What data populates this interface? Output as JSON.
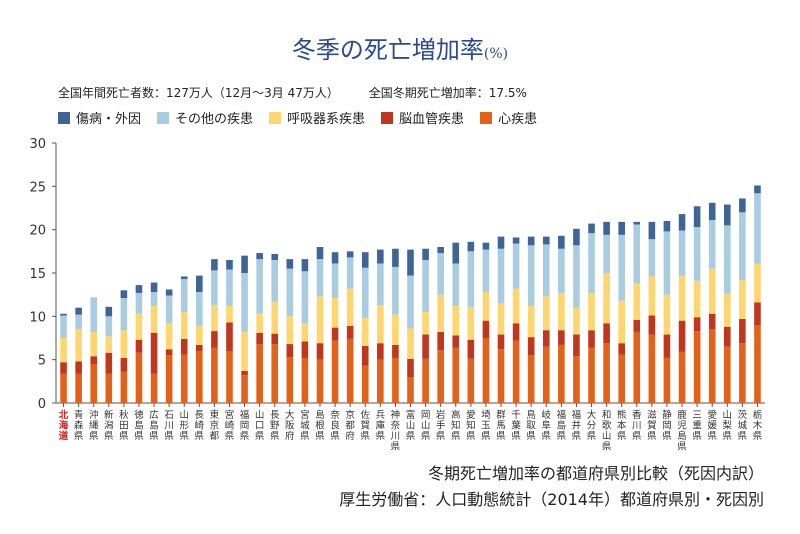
{
  "header": {
    "title_main": "冬季の死亡増加率",
    "title_unit": "(%)",
    "stat_total": "全国年間死亡者数：127万人（12月～3月 47万人）",
    "stat_rate": "全国冬期死亡増加率：17.5%"
  },
  "footer": {
    "line1": "冬期死亡増加率の都道府県別比較（死因内訳）",
    "line2": "厚生労働省：人口動態統計（2014年）都道府県別・死因別"
  },
  "colors": {
    "injury": "#3f6597",
    "other": "#a9cce0",
    "respiratory": "#fdd66f",
    "cerebro": "#c0361e",
    "heart": "#e2621a",
    "highlight_label": "#d42020"
  },
  "chart_data": {
    "type": "bar",
    "stacked": true,
    "ylim": [
      0,
      30
    ],
    "yticks": [
      0,
      5,
      10,
      15,
      20,
      25,
      30
    ],
    "grid": false,
    "legend_position": "top-left",
    "highlight_category": "北海道",
    "categories": [
      "北海道",
      "青森県",
      "沖縄県",
      "新潟県",
      "秋田県",
      "徳島県",
      "広島県",
      "石川県",
      "山形県",
      "長崎県",
      "東京都",
      "宮崎県",
      "福岡県",
      "山口県",
      "長野県",
      "大阪府",
      "宮城県",
      "島根県",
      "奈良県",
      "京都府",
      "佐賀県",
      "兵庫県",
      "神奈川県",
      "富山県",
      "岡山県",
      "岩手県",
      "高知県",
      "愛知県",
      "埼玉県",
      "群馬県",
      "千葉県",
      "鳥取県",
      "岐阜県",
      "福島県",
      "福井県",
      "大分県",
      "和歌山県",
      "熊本県",
      "香川県",
      "滋賀県",
      "静岡県",
      "鹿児島県",
      "三重県",
      "愛媛県",
      "山梨県",
      "茨城県",
      "栃木県"
    ],
    "series": [
      {
        "name": "心疾患",
        "key": "heart",
        "values": [
          3.4,
          3.4,
          4.5,
          3.4,
          3.6,
          5.8,
          3.4,
          5.5,
          5.6,
          6.0,
          6.4,
          6.0,
          3.2,
          6.8,
          6.8,
          5.3,
          5.2,
          5.0,
          7.2,
          7.4,
          4.3,
          5.0,
          5.2,
          3.0,
          5.1,
          6.1,
          6.4,
          5.1,
          7.5,
          6.2,
          7.2,
          5.5,
          6.5,
          6.7,
          5.4,
          6.4,
          6.9,
          5.6,
          8.2,
          7.9,
          5.2,
          5.9,
          8.3,
          8.5,
          6.5,
          6.9,
          9.0
        ]
      },
      {
        "name": "脳血管疾患",
        "key": "cerebro",
        "values": [
          1.3,
          1.4,
          0.9,
          2.4,
          1.6,
          1.5,
          4.7,
          0.7,
          1.8,
          0.7,
          1.9,
          3.3,
          0.5,
          1.3,
          1.2,
          1.5,
          1.9,
          1.9,
          1.5,
          1.5,
          2.3,
          1.9,
          1.5,
          2.1,
          2.8,
          2.1,
          1.4,
          2.2,
          2.0,
          1.7,
          2.0,
          2.1,
          1.9,
          1.7,
          2.5,
          2.0,
          2.3,
          1.3,
          1.4,
          2.2,
          2.7,
          3.6,
          1.6,
          1.8,
          2.3,
          2.8,
          2.6
        ]
      },
      {
        "name": "呼吸器系疾患",
        "key": "respiratory",
        "values": [
          2.8,
          3.7,
          2.8,
          1.9,
          3.2,
          3.0,
          3.1,
          3.0,
          3.1,
          2.2,
          3.0,
          1.9,
          4.5,
          2.2,
          3.7,
          3.2,
          2.1,
          5.4,
          3.4,
          4.3,
          3.2,
          4.4,
          3.5,
          3.5,
          2.6,
          4.3,
          3.4,
          3.8,
          3.3,
          3.6,
          4.0,
          3.6,
          3.9,
          4.3,
          3.1,
          4.3,
          5.8,
          4.9,
          4.2,
          4.5,
          4.6,
          5.2,
          4.2,
          5.2,
          3.8,
          4.5,
          4.5
        ]
      },
      {
        "name": "その他の疾患",
        "key": "other",
        "values": [
          2.6,
          1.7,
          4.0,
          2.3,
          3.7,
          2.4,
          1.6,
          3.2,
          3.8,
          3.9,
          4.0,
          4.2,
          6.8,
          6.3,
          4.8,
          5.5,
          6.0,
          4.3,
          4.0,
          3.6,
          5.8,
          4.8,
          5.5,
          6.1,
          6.0,
          4.8,
          4.9,
          6.4,
          4.9,
          6.3,
          5.2,
          7.0,
          6.0,
          5.1,
          7.2,
          6.9,
          4.4,
          7.6,
          6.8,
          4.3,
          7.3,
          5.2,
          6.2,
          5.6,
          7.9,
          7.8,
          8.1
        ]
      },
      {
        "name": "傷病・外因",
        "key": "injury",
        "values": [
          0.2,
          0.8,
          0.0,
          1.1,
          0.9,
          0.9,
          1.1,
          0.7,
          0.3,
          1.9,
          1.3,
          1.1,
          2.0,
          0.7,
          0.7,
          1.1,
          1.4,
          1.4,
          1.3,
          0.7,
          1.8,
          1.6,
          2.1,
          3.0,
          1.3,
          0.7,
          2.4,
          1.1,
          0.8,
          1.4,
          0.7,
          1.0,
          0.9,
          1.5,
          1.9,
          1.1,
          1.5,
          1.5,
          0.3,
          2.0,
          1.2,
          1.9,
          2.4,
          2.0,
          2.4,
          1.6,
          0.9
        ]
      }
    ]
  }
}
